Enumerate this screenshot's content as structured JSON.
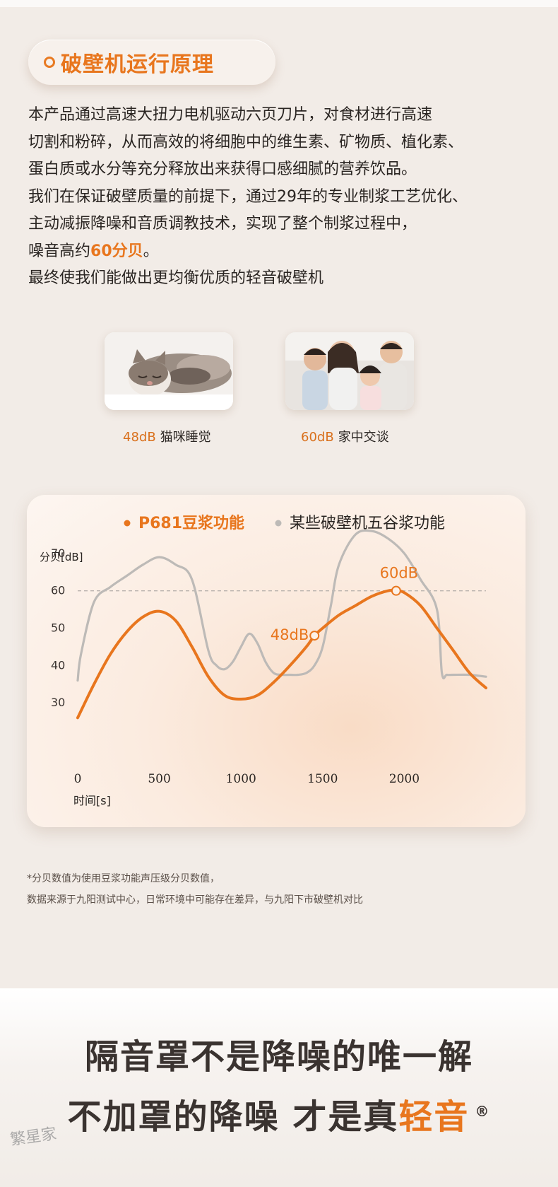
{
  "section_title": "破壁机运行原理",
  "intro": {
    "lines": [
      "本产品通过高速大扭力电机驱动六页刀片，对食材进行高速",
      "切割和粉碎，从而高效的将细胞中的维生素、矿物质、植化素、",
      "蛋白质或水分等充分释放出来获得口感细腻的营养饮品。",
      " 我们在保证破壁质量的前提下，通过29年的专业制浆工艺优化、",
      "主动减振降噪和音质调教技术，实现了整个制浆过程中，"
    ],
    "noise_prefix": "噪音高约",
    "noise_value": "60分贝",
    "noise_suffix": "。",
    "last_line": "最终使我们能做出更均衡优质的轻音破壁机"
  },
  "comparisons": [
    {
      "db": "48dB",
      "label": "猫咪睡觉",
      "icon": "sleeping-cat-photo"
    },
    {
      "db": "60dB",
      "label": "家中交谈",
      "icon": "family-talking-photo"
    }
  ],
  "chart_data": {
    "type": "line",
    "ylabel": "分贝[dB]",
    "xlabel": "时间[s]",
    "x_ticks": [
      0,
      500,
      1000,
      1500,
      2000
    ],
    "y_ticks": [
      30,
      40,
      50,
      60,
      70
    ],
    "xlim": [
      0,
      2500
    ],
    "ylim": [
      20,
      80
    ],
    "grid": false,
    "legend_position": "top",
    "reference_line": 60,
    "series": [
      {
        "name": "P681豆浆功能",
        "color": "#e8761e",
        "x": [
          0,
          100,
          200,
          300,
          400,
          500,
          600,
          700,
          800,
          900,
          1000,
          1100,
          1200,
          1300,
          1400,
          1450,
          1500,
          1600,
          1700,
          1800,
          1900,
          1950,
          2000,
          2100,
          2200,
          2300,
          2400,
          2500
        ],
        "y": [
          26,
          35,
          43,
          49,
          53,
          54.5,
          52,
          45,
          37,
          32,
          31,
          32,
          35.5,
          40,
          45,
          48,
          50,
          53.5,
          56,
          58.5,
          60,
          60,
          59.5,
          56,
          50,
          44,
          38,
          34
        ]
      },
      {
        "name": "某些破壁机五谷浆功能",
        "color": "#bdbab7",
        "x": [
          0,
          20,
          100,
          200,
          300,
          400,
          500,
          600,
          700,
          800,
          850,
          900,
          950,
          1000,
          1050,
          1100,
          1150,
          1200,
          1250,
          1300,
          1350,
          1400,
          1450,
          1500,
          1550,
          1600,
          1700,
          1800,
          1900,
          2000,
          2100,
          2200,
          2230,
          2260,
          2300,
          2400,
          2500
        ],
        "y": [
          36,
          43,
          57,
          61,
          64,
          67,
          69,
          67,
          63,
          44,
          40,
          39,
          41,
          45,
          48.5,
          46,
          41,
          38,
          37.5,
          37.5,
          37.5,
          38,
          40,
          45,
          56,
          67,
          75,
          76,
          74,
          70,
          63,
          55,
          38,
          37.5,
          37.5,
          37.5,
          37
        ]
      }
    ],
    "annotations": [
      {
        "x": 1450,
        "y": 48,
        "text": "48dB",
        "series": 0
      },
      {
        "x": 1950,
        "y": 60,
        "text": "60dB",
        "series": 0
      }
    ]
  },
  "notes": [
    "*分贝数值为使用豆浆功能声压级分贝数值，",
    "数据来源于九阳测试中心，日常环境中可能存在差异，与九阳下市破壁机对比"
  ],
  "slogan": {
    "line1": "隔音罩不是降噪的唯一解",
    "line2_main": "不加罩的降噪 才是真",
    "line2_highlight": "轻音",
    "registered": "®"
  },
  "watermark": "繁星家"
}
